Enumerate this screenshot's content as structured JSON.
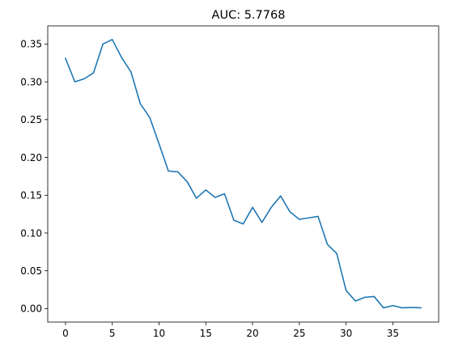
{
  "chart_data": {
    "type": "line",
    "title": "AUC: 5.7768",
    "xlabel": "",
    "ylabel": "",
    "xlim": [
      -1.9,
      39.9
    ],
    "ylim": [
      -0.0178,
      0.374
    ],
    "xticks": [
      0,
      5,
      10,
      15,
      20,
      25,
      30,
      35
    ],
    "yticks": [
      0.0,
      0.05,
      0.1,
      0.15,
      0.2,
      0.25,
      0.3,
      0.35
    ],
    "ytick_labels": [
      "0.00",
      "0.05",
      "0.10",
      "0.15",
      "0.20",
      "0.25",
      "0.30",
      "0.35"
    ],
    "grid": false,
    "color": "#1f77b4",
    "series": [
      {
        "x": [
          0,
          1,
          2,
          3,
          4,
          5,
          6,
          7,
          8,
          9,
          10,
          11,
          12,
          13,
          14,
          15,
          16,
          17,
          18,
          19,
          20,
          21,
          22,
          23,
          24,
          25,
          26,
          27,
          28,
          29,
          30,
          31,
          32,
          33,
          34,
          35,
          36,
          37,
          38
        ],
        "values": [
          0.331,
          0.3,
          0.304,
          0.312,
          0.35,
          0.356,
          0.332,
          0.313,
          0.271,
          0.253,
          0.218,
          0.182,
          0.181,
          0.168,
          0.146,
          0.157,
          0.147,
          0.152,
          0.117,
          0.112,
          0.134,
          0.114,
          0.134,
          0.149,
          0.128,
          0.118,
          0.12,
          0.122,
          0.085,
          0.073,
          0.024,
          0.01,
          0.015,
          0.016,
          0.001,
          0.004,
          0.001,
          0.0015,
          0.001
        ]
      }
    ]
  }
}
